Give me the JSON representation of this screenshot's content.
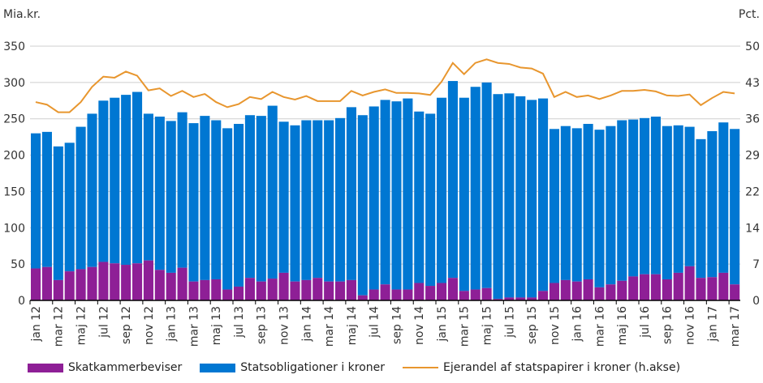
{
  "chart_data": {
    "type": "bar",
    "stacked": true,
    "left_axis_label": "Mia.kr.",
    "right_axis_label": "Pct.",
    "ylim": [
      0,
      350
    ],
    "yticks": [
      0,
      50,
      100,
      150,
      200,
      250,
      300,
      350
    ],
    "y2lim": [
      0,
      50
    ],
    "y2ticks": [
      "0",
      "7",
      "14",
      "22",
      "29",
      "36",
      "43",
      "50"
    ],
    "xtick_labels": [
      "jan 12",
      "mar 12",
      "maj 12",
      "jul 12",
      "sep 12",
      "nov 12",
      "jan 13",
      "mar 13",
      "maj 13",
      "jul 13",
      "sep 13",
      "nov 13",
      "jan 14",
      "mar 14",
      "maj 14",
      "jul 14",
      "sep 14",
      "nov 14",
      "jan 15",
      "mar 15",
      "maj 15",
      "jul 15",
      "sep 15",
      "nov 15",
      "jan 16",
      "mar 16",
      "maj 16",
      "jul 16",
      "sep 16",
      "nov 16",
      "jan 17",
      "mar 17"
    ],
    "grid": true,
    "legend_position": "bottom",
    "series": [
      {
        "name": "Skatkammerbeviser",
        "kind": "bar",
        "axis": "left",
        "color": "#8E1F96",
        "values": [
          44,
          46,
          28,
          40,
          43,
          46,
          53,
          51,
          49,
          51,
          55,
          42,
          38,
          45,
          26,
          28,
          29,
          15,
          19,
          31,
          26,
          30,
          38,
          26,
          28,
          31,
          26,
          26,
          28,
          7,
          15,
          22,
          15,
          15,
          24,
          20,
          24,
          31,
          13,
          15,
          17,
          2,
          4,
          4,
          4,
          13,
          24,
          28,
          26,
          29,
          18,
          22,
          27,
          33,
          36,
          36,
          29,
          38,
          47,
          31,
          32,
          38,
          22
        ]
      },
      {
        "name": "Statsobligationer i kroner",
        "kind": "bar",
        "axis": "left",
        "color": "#0077D2",
        "totals": [
          230,
          232,
          212,
          217,
          239,
          257,
          275,
          279,
          283,
          287,
          257,
          253,
          247,
          259,
          244,
          254,
          248,
          237,
          243,
          255,
          254,
          268,
          246,
          241,
          248,
          248,
          248,
          251,
          266,
          255,
          267,
          276,
          274,
          278,
          260,
          257,
          279,
          302,
          279,
          294,
          300,
          284,
          285,
          281,
          276,
          278,
          236,
          240,
          237,
          243,
          235,
          240,
          248,
          249,
          251,
          253,
          240,
          241,
          239,
          222,
          233,
          245,
          236
        ]
      },
      {
        "name": "Ejerandel af statspapirer i kroner (h.akse)",
        "kind": "line",
        "axis": "right",
        "color": "#E8962E",
        "values": [
          39,
          38.5,
          37,
          37,
          39,
          42,
          44,
          43.8,
          45,
          44.2,
          41.3,
          41.7,
          40.2,
          41.2,
          40,
          40.6,
          39,
          38,
          38.6,
          40,
          39.6,
          41,
          40,
          39.5,
          40.2,
          39.2,
          39.2,
          39.2,
          41.2,
          40.3,
          41,
          41.5,
          40.8,
          40.8,
          40.7,
          40.4,
          43,
          46.7,
          44.5,
          46.7,
          47.4,
          46.7,
          46.5,
          45.8,
          45.6,
          44.6,
          40,
          41,
          40,
          40.3,
          39.6,
          40.3,
          41.2,
          41.2,
          41.4,
          41.1,
          40.3,
          40.2,
          40.5,
          38.4,
          39.8,
          41,
          40.7
        ]
      }
    ]
  }
}
